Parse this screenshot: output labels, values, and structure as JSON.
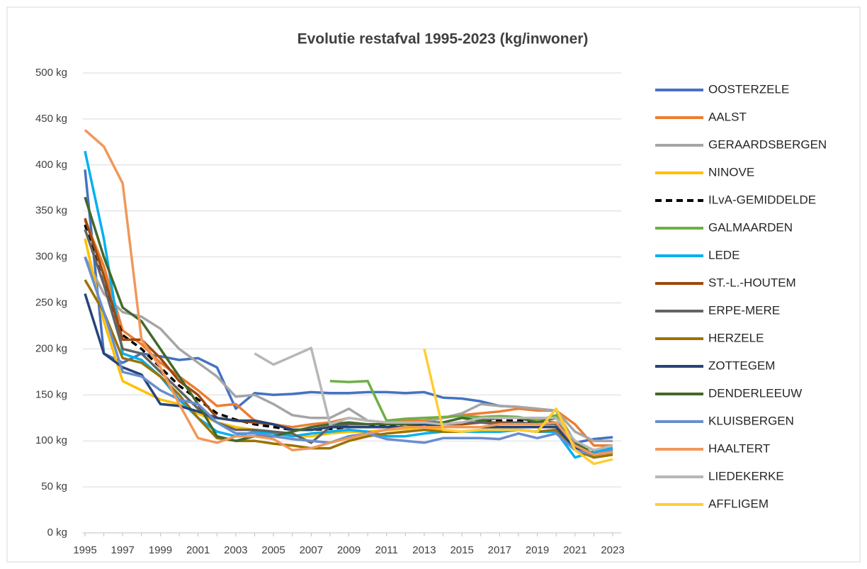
{
  "chart_data": {
    "type": "line",
    "title": "Evolutie restafval 1995-2023 (kg/inwoner)",
    "categories": [
      "1995",
      null,
      "1997",
      null,
      "1999",
      null,
      "2001",
      null,
      "2003",
      null,
      "2005",
      null,
      "2007",
      null,
      "2009",
      null,
      "2011",
      null,
      "2013",
      null,
      "2015",
      null,
      "2017",
      null,
      "2019",
      null,
      "2021",
      null,
      "2023"
    ],
    "ylim": [
      0,
      500
    ],
    "yticks": [
      {
        "value": 0,
        "label": "0  kg"
      },
      {
        "value": 50,
        "label": "50  kg"
      },
      {
        "value": 100,
        "label": "100  kg"
      },
      {
        "value": 150,
        "label": "150  kg"
      },
      {
        "value": 200,
        "label": "200  kg"
      },
      {
        "value": 250,
        "label": "250  kg"
      },
      {
        "value": 300,
        "label": "300  kg"
      },
      {
        "value": 350,
        "label": "350  kg"
      },
      {
        "value": 400,
        "label": "400  kg"
      },
      {
        "value": 450,
        "label": "450  kg"
      },
      {
        "value": 500,
        "label": "500  kg"
      }
    ],
    "grid": true,
    "legend": "right",
    "series": [
      {
        "name": "OOSTERZELE",
        "color": "#4472c4",
        "values": [
          395,
          195,
          185,
          195,
          192,
          188,
          190,
          180,
          135,
          152,
          150,
          151,
          153,
          152,
          152,
          153,
          153,
          152,
          153,
          147,
          146,
          143,
          138,
          137,
          133,
          133,
          98,
          102,
          104
        ]
      },
      {
        "name": "AALST",
        "color": "#ed7d31",
        "values": [
          340,
          290,
          220,
          205,
          185,
          170,
          155,
          138,
          140,
          122,
          118,
          115,
          118,
          120,
          125,
          122,
          120,
          122,
          122,
          125,
          128,
          130,
          132,
          135,
          133,
          133,
          118,
          95,
          95
        ]
      },
      {
        "name": "GERAARDSBERGEN",
        "color": "#a5a5a5",
        "values": [
          300,
          260,
          240,
          235,
          222,
          200,
          185,
          170,
          148,
          150,
          140,
          128,
          125,
          125,
          135,
          122,
          120,
          120,
          120,
          125,
          130,
          140,
          138,
          137,
          135,
          133,
          110,
          100,
          100
        ]
      },
      {
        "name": "NINOVE",
        "color": "#ffc000",
        "values": [
          320,
          230,
          165,
          155,
          145,
          140,
          130,
          120,
          115,
          112,
          110,
          105,
          105,
          108,
          110,
          110,
          112,
          113,
          115,
          112,
          110,
          110,
          110,
          112,
          110,
          135,
          95,
          82,
          85
        ]
      },
      {
        "name": "ILvA-GEMIDDELDE",
        "color": "#000000",
        "style": "dashed",
        "values": [
          335,
          270,
          215,
          200,
          180,
          160,
          145,
          130,
          123,
          118,
          115,
          112,
          112,
          113,
          115,
          115,
          117,
          118,
          118,
          118,
          120,
          120,
          122,
          122,
          120,
          120,
          100,
          88,
          90
        ]
      },
      {
        "name": "GALMAARDEN",
        "color": "#70ad47",
        "values": [
          null,
          null,
          null,
          null,
          null,
          null,
          null,
          null,
          null,
          null,
          null,
          null,
          null,
          165,
          164,
          165,
          122,
          124,
          125,
          126,
          127,
          126,
          127,
          126,
          122,
          128,
          98,
          90,
          92
        ]
      },
      {
        "name": "LEDE",
        "color": "#00b0f0",
        "values": [
          415,
          320,
          195,
          188,
          170,
          145,
          125,
          110,
          105,
          110,
          108,
          105,
          108,
          110,
          112,
          110,
          105,
          105,
          108,
          110,
          110,
          110,
          110,
          112,
          110,
          110,
          82,
          88,
          92
        ]
      },
      {
        "name": "ST.-L.-HOUTEM",
        "color": "#9e480e",
        "values": [
          342,
          280,
          210,
          210,
          190,
          165,
          150,
          125,
          122,
          120,
          118,
          112,
          112,
          115,
          118,
          118,
          118,
          120,
          120,
          118,
          118,
          120,
          120,
          120,
          118,
          118,
          95,
          85,
          88
        ]
      },
      {
        "name": "ERPE-MERE",
        "color": "#636363",
        "values": [
          330,
          270,
          200,
          195,
          175,
          155,
          135,
          120,
          112,
          112,
          110,
          108,
          98,
          115,
          118,
          118,
          118,
          118,
          118,
          118,
          120,
          120,
          118,
          120,
          118,
          118,
          95,
          85,
          88
        ]
      },
      {
        "name": "HERZELE",
        "color": "#997300",
        "values": [
          275,
          240,
          190,
          185,
          170,
          150,
          125,
          103,
          100,
          100,
          97,
          95,
          92,
          92,
          100,
          105,
          108,
          110,
          112,
          110,
          110,
          112,
          112,
          112,
          110,
          112,
          90,
          82,
          85
        ]
      },
      {
        "name": "ZOTTEGEM",
        "color": "#264478",
        "values": [
          260,
          195,
          180,
          172,
          140,
          138,
          132,
          125,
          122,
          122,
          118,
          112,
          112,
          115,
          115,
          115,
          115,
          115,
          118,
          115,
          115,
          115,
          115,
          115,
          115,
          115,
          92,
          85,
          88
        ]
      },
      {
        "name": "DENDERLEEUW",
        "color": "#43682b",
        "values": [
          365,
          300,
          245,
          230,
          200,
          170,
          140,
          105,
          100,
          105,
          105,
          110,
          115,
          118,
          120,
          118,
          118,
          118,
          120,
          120,
          125,
          122,
          125,
          125,
          120,
          125,
          98,
          85,
          88
        ]
      },
      {
        "name": "KLUISBERGEN",
        "color": "#698ed0",
        "values": [
          300,
          240,
          175,
          170,
          155,
          145,
          140,
          120,
          108,
          108,
          105,
          102,
          100,
          98,
          105,
          108,
          102,
          100,
          98,
          103,
          103,
          103,
          102,
          108,
          103,
          108,
          90,
          85,
          90
        ]
      },
      {
        "name": "HAALTERT",
        "color": "#f1975a",
        "values": [
          438,
          420,
          380,
          210,
          180,
          140,
          103,
          98,
          105,
          105,
          102,
          90,
          92,
          98,
          103,
          108,
          112,
          115,
          115,
          115,
          115,
          115,
          118,
          118,
          118,
          120,
          95,
          85,
          88
        ]
      },
      {
        "name": "LIEDEKERKE",
        "color": "#b7b7b7",
        "values": [
          null,
          null,
          null,
          null,
          null,
          null,
          null,
          null,
          null,
          195,
          183,
          192,
          201,
          118,
          125,
          122,
          120,
          120,
          120,
          118,
          120,
          125,
          125,
          125,
          125,
          125,
          100,
          90,
          95
        ]
      },
      {
        "name": "AFFLIGEM",
        "color": "#ffcd33",
        "values": [
          null,
          null,
          null,
          null,
          null,
          null,
          null,
          null,
          null,
          null,
          null,
          null,
          null,
          null,
          null,
          null,
          null,
          null,
          200,
          112,
          110,
          112,
          112,
          112,
          110,
          135,
          90,
          75,
          80
        ]
      }
    ]
  }
}
